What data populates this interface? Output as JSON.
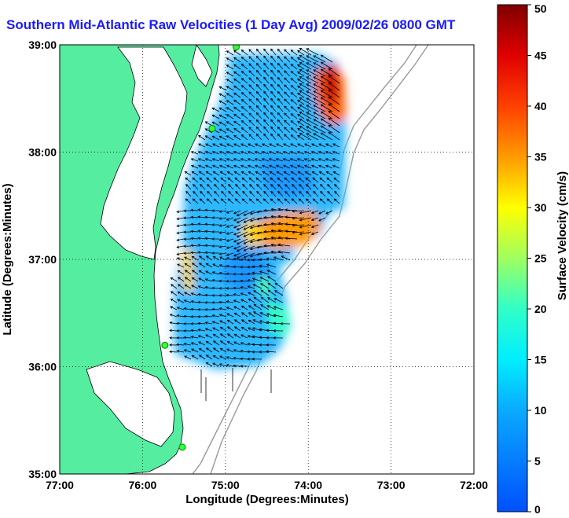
{
  "title": "Southern Mid-Atlantic Raw Velocities (1 Day Avg) 2009/02/26 0800 GMT",
  "map": {
    "xlabel": "Longitude (Degrees:Minutes)",
    "ylabel": "Latitude (Degrees:Minutes)",
    "x_ticks": [
      "77:00",
      "76:00",
      "75:00",
      "74:00",
      "73:00",
      "72:00"
    ],
    "y_ticks": [
      "35:00",
      "36:00",
      "37:00",
      "38:00",
      "39:00"
    ],
    "lon_range": [
      -77,
      -72
    ],
    "lat_range": [
      35,
      39
    ],
    "land_color": "#55eea0",
    "sea_color": "#ffffff",
    "grid": "dotted"
  },
  "colorbar": {
    "label": "Surface Velocity (cm/s)",
    "ticks": [
      "0",
      "5",
      "10",
      "15",
      "20",
      "25",
      "30",
      "35",
      "40",
      "45",
      "50"
    ],
    "range": [
      0,
      50
    ]
  },
  "stations": [
    {
      "lon": -74.87,
      "lat": 38.98
    },
    {
      "lon": -75.16,
      "lat": 38.22
    },
    {
      "lon": -75.73,
      "lat": 36.2
    },
    {
      "lon": -75.52,
      "lat": 35.25
    }
  ]
}
